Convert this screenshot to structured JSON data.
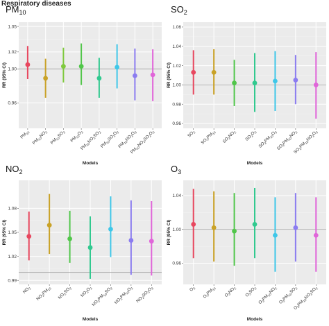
{
  "figure_title": "Respiratory diseases",
  "chart_data": [
    {
      "type": "scatter",
      "title": "PM10",
      "title_main": "PM",
      "title_sub": "10",
      "xlabel": "Models",
      "ylabel": "RR (95% CI)",
      "ylim": [
        0.93,
        1.055
      ],
      "yticks": [
        0.96,
        1.0,
        1.02,
        1.05
      ],
      "reference_line": 1.0,
      "grid": true,
      "categories": [
        [
          [
            "PM",
            ""
          ],
          [
            "10",
            "sub"
          ]
        ],
        [
          [
            "PM",
            ""
          ],
          [
            "10",
            "sub"
          ],
          [
            "NO",
            ""
          ],
          [
            "2",
            "sub"
          ]
        ],
        [
          [
            "PM",
            ""
          ],
          [
            "10",
            "sub"
          ],
          [
            "SO",
            ""
          ],
          [
            "2",
            "sub"
          ]
        ],
        [
          [
            "PM",
            ""
          ],
          [
            "10",
            "sub"
          ],
          [
            "O",
            ""
          ],
          [
            "3",
            "sub"
          ]
        ],
        [
          [
            "PM",
            ""
          ],
          [
            "10",
            "sub"
          ],
          [
            "NO",
            ""
          ],
          [
            "2",
            "sub"
          ],
          [
            "SO",
            ""
          ],
          [
            "2",
            "sub"
          ]
        ],
        [
          [
            "PM",
            ""
          ],
          [
            "10",
            "sub"
          ],
          [
            "SO",
            ""
          ],
          [
            "2",
            "sub"
          ],
          [
            "O",
            ""
          ],
          [
            "3",
            "sub"
          ]
        ],
        [
          [
            "PM",
            ""
          ],
          [
            "10",
            "sub"
          ],
          [
            "NO",
            ""
          ],
          [
            "2",
            "sub"
          ],
          [
            "O",
            ""
          ],
          [
            "3",
            "sub"
          ]
        ],
        [
          [
            "PM",
            ""
          ],
          [
            "10",
            "sub"
          ],
          [
            "NO",
            ""
          ],
          [
            "2",
            "sub"
          ],
          [
            "SO",
            ""
          ],
          [
            "2",
            "sub"
          ],
          [
            "O",
            ""
          ],
          [
            "3",
            "sub"
          ]
        ]
      ],
      "estimates": [
        1.005,
        0.989,
        1.003,
        1.003,
        0.989,
        1.002,
        0.992,
        0.993
      ],
      "lower": [
        0.988,
        0.966,
        0.984,
        0.981,
        0.966,
        0.977,
        0.963,
        0.962
      ],
      "upper": [
        1.027,
        1.012,
        1.025,
        1.03,
        1.013,
        1.029,
        1.024,
        1.023
      ],
      "colors": [
        "#e8475f",
        "#c9a227",
        "#7fc93e",
        "#51c64a",
        "#31c98f",
        "#3fc7e8",
        "#8b7cf0",
        "#e065d9"
      ]
    },
    {
      "type": "scatter",
      "title": "SO2",
      "title_main": "SO",
      "title_sub": "2",
      "xlabel": "Models",
      "ylabel": "RR (95% CI)",
      "ylim": [
        0.955,
        1.065
      ],
      "yticks": [
        0.96,
        0.98,
        1.0,
        1.02,
        1.04,
        1.06
      ],
      "reference_line": 1.0,
      "grid": true,
      "categories": [
        [
          [
            "SO",
            ""
          ],
          [
            "2",
            "sub"
          ]
        ],
        [
          [
            "SO",
            ""
          ],
          [
            "2",
            "sub"
          ],
          [
            "PM",
            ""
          ],
          [
            "10",
            "sub"
          ]
        ],
        [
          [
            "SO",
            ""
          ],
          [
            "2",
            "sub"
          ],
          [
            "NO",
            ""
          ],
          [
            "2",
            "sub"
          ]
        ],
        [
          [
            "SO",
            ""
          ],
          [
            "2",
            "sub"
          ],
          [
            "O",
            ""
          ],
          [
            "3",
            "sub"
          ]
        ],
        [
          [
            "SO",
            ""
          ],
          [
            "2",
            "sub"
          ],
          [
            "PM",
            ""
          ],
          [
            "10",
            "sub"
          ],
          [
            "O",
            ""
          ],
          [
            "3",
            "sub"
          ]
        ],
        [
          [
            "SO",
            ""
          ],
          [
            "2",
            "sub"
          ],
          [
            "PM",
            ""
          ],
          [
            "10",
            "sub"
          ],
          [
            "NO",
            ""
          ],
          [
            "2",
            "sub"
          ]
        ],
        [
          [
            "SO",
            ""
          ],
          [
            "2",
            "sub"
          ],
          [
            "PM",
            ""
          ],
          [
            "10",
            "sub"
          ],
          [
            "NO",
            ""
          ],
          [
            "2",
            "sub"
          ],
          [
            "O",
            ""
          ],
          [
            "3",
            "sub"
          ]
        ]
      ],
      "estimates": [
        1.013,
        1.013,
        1.002,
        1.002,
        1.004,
        1.005,
        1.0
      ],
      "lower": [
        0.99,
        0.99,
        0.978,
        0.972,
        0.973,
        0.98,
        0.965
      ],
      "upper": [
        1.036,
        1.037,
        1.026,
        1.033,
        1.035,
        1.031,
        1.034
      ],
      "colors": [
        "#e8475f",
        "#c9a227",
        "#51c64a",
        "#31c98f",
        "#3fc7e8",
        "#8b7cf0",
        "#e065d9"
      ]
    },
    {
      "type": "scatter",
      "title": "NO2",
      "title_main": "NO",
      "title_sub": "2",
      "xlabel": "Models",
      "ylabel": "RR (95% CI)",
      "ylim": [
        0.985,
        1.115
      ],
      "yticks": [
        0.99,
        1.02,
        1.05,
        1.08
      ],
      "reference_line": 1.0,
      "grid": true,
      "categories": [
        [
          [
            "NO",
            ""
          ],
          [
            "2",
            "sub"
          ]
        ],
        [
          [
            "NO",
            ""
          ],
          [
            "2",
            "sub"
          ],
          [
            "PM",
            ""
          ],
          [
            "10",
            "sub"
          ]
        ],
        [
          [
            "NO",
            ""
          ],
          [
            "2",
            "sub"
          ],
          [
            "SO",
            ""
          ],
          [
            "2",
            "sub"
          ]
        ],
        [
          [
            "NO",
            ""
          ],
          [
            "2",
            "sub"
          ],
          [
            "O",
            ""
          ],
          [
            "3",
            "sub"
          ]
        ],
        [
          [
            "NO",
            ""
          ],
          [
            "2",
            "sub"
          ],
          [
            "PM",
            ""
          ],
          [
            "10",
            "sub"
          ],
          [
            "SO",
            ""
          ],
          [
            "2",
            "sub"
          ]
        ],
        [
          [
            "NO",
            ""
          ],
          [
            "2",
            "sub"
          ],
          [
            "PM",
            ""
          ],
          [
            "10",
            "sub"
          ],
          [
            "O",
            ""
          ],
          [
            "3",
            "sub"
          ]
        ],
        [
          [
            "NO",
            ""
          ],
          [
            "2",
            "sub"
          ],
          [
            "SO",
            ""
          ],
          [
            "2",
            "sub"
          ],
          [
            "O",
            ""
          ],
          [
            "3",
            "sub"
          ]
        ]
      ],
      "estimates": [
        1.045,
        1.059,
        1.042,
        1.031,
        1.054,
        1.04,
        1.039
      ],
      "lower": [
        1.015,
        1.023,
        1.012,
        0.992,
        1.019,
        0.997,
        0.996
      ],
      "upper": [
        1.076,
        1.098,
        1.077,
        1.07,
        1.095,
        1.09,
        1.089
      ],
      "colors": [
        "#e8475f",
        "#c9a227",
        "#51c64a",
        "#31c98f",
        "#3fc7e8",
        "#8b7cf0",
        "#e065d9"
      ]
    },
    {
      "type": "scatter",
      "title": "O3",
      "title_main": "O",
      "title_sub": "3",
      "xlabel": "Models",
      "ylabel": "RR (95% CI)",
      "ylim": [
        0.935,
        1.058
      ],
      "yticks": [
        0.96,
        1.0,
        1.04
      ],
      "reference_line": 1.0,
      "grid": true,
      "categories": [
        [
          [
            "O",
            ""
          ],
          [
            "3",
            "sub"
          ]
        ],
        [
          [
            "O",
            ""
          ],
          [
            "3",
            "sub"
          ],
          [
            "PM",
            ""
          ],
          [
            "10",
            "sub"
          ]
        ],
        [
          [
            "O",
            ""
          ],
          [
            "3",
            "sub"
          ],
          [
            "NO",
            ""
          ],
          [
            "2",
            "sub"
          ]
        ],
        [
          [
            "O",
            ""
          ],
          [
            "3",
            "sub"
          ],
          [
            "SO",
            ""
          ],
          [
            "2",
            "sub"
          ]
        ],
        [
          [
            "O",
            ""
          ],
          [
            "3",
            "sub"
          ],
          [
            "PM",
            ""
          ],
          [
            "10",
            "sub"
          ],
          [
            "NO",
            ""
          ],
          [
            "2",
            "sub"
          ]
        ],
        [
          [
            "O",
            ""
          ],
          [
            "3",
            "sub"
          ],
          [
            "PM",
            ""
          ],
          [
            "10",
            "sub"
          ],
          [
            "SO",
            ""
          ],
          [
            "2",
            "sub"
          ]
        ],
        [
          [
            "O",
            ""
          ],
          [
            "3",
            "sub"
          ],
          [
            "PM",
            ""
          ],
          [
            "10",
            "sub"
          ],
          [
            "NO",
            ""
          ],
          [
            "2",
            "sub"
          ],
          [
            "SO",
            ""
          ],
          [
            "2",
            "sub"
          ]
        ]
      ],
      "estimates": [
        1.006,
        1.002,
        0.998,
        1.006,
        0.993,
        1.002,
        0.993
      ],
      "lower": [
        0.966,
        0.962,
        0.957,
        0.966,
        0.95,
        0.962,
        0.95
      ],
      "upper": [
        1.048,
        1.045,
        1.043,
        1.049,
        1.038,
        1.043,
        1.038
      ],
      "colors": [
        "#e8475f",
        "#c9a227",
        "#51c64a",
        "#31c98f",
        "#3fc7e8",
        "#8b7cf0",
        "#e065d9"
      ]
    }
  ]
}
